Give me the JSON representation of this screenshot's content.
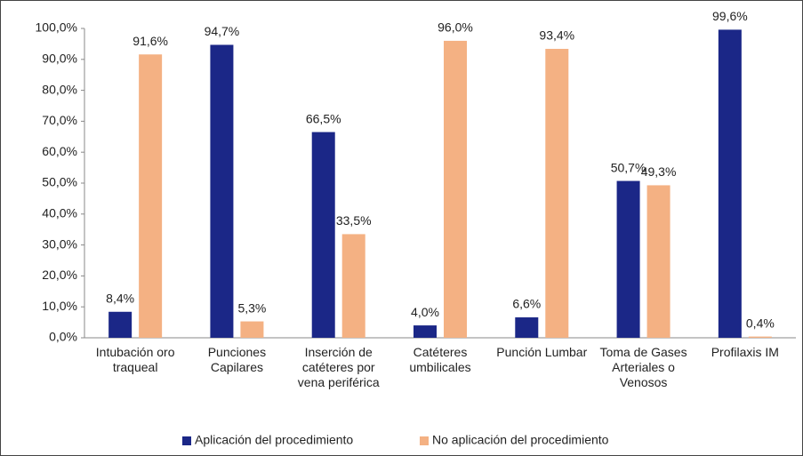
{
  "chart_data": {
    "type": "bar",
    "categories": [
      "Intubación oro traqueal",
      "Punciones Capilares",
      "Inserción de catéteres por vena periférica",
      "Catéteres umbilicales",
      "Punción Lumbar",
      "Toma de Gases Arteriales o Venosos",
      "Profilaxis IM"
    ],
    "series": [
      {
        "name": "Aplicación del procedimiento",
        "color": "#1b2787",
        "values": [
          8.4,
          94.7,
          66.5,
          4.0,
          6.6,
          50.7,
          99.6
        ],
        "value_labels": [
          "8,4%",
          "94,7%",
          "66,5%",
          "4,0%",
          "6,6%",
          "50,7%",
          "99,6%"
        ]
      },
      {
        "name": "No aplicación del procedimiento",
        "color": "#f4b183",
        "values": [
          91.6,
          5.3,
          33.5,
          96.0,
          93.4,
          49.3,
          0.4
        ],
        "value_labels": [
          "91,6%",
          "5,3%",
          "33,5%",
          "96,0%",
          "93,4%",
          "49,3%",
          "0,4%"
        ]
      }
    ],
    "ylim": [
      0,
      100
    ],
    "yticks": [
      {
        "value": 0,
        "label": "0,0%"
      },
      {
        "value": 10,
        "label": "10,0%"
      },
      {
        "value": 20,
        "label": "20,0%"
      },
      {
        "value": 30,
        "label": "30,0%"
      },
      {
        "value": 40,
        "label": "40,0%"
      },
      {
        "value": 50,
        "label": "50,0%"
      },
      {
        "value": 60,
        "label": "60,0%"
      },
      {
        "value": 70,
        "label": "70,0%"
      },
      {
        "value": 80,
        "label": "80,0%"
      },
      {
        "value": 90,
        "label": "90,0%"
      },
      {
        "value": 100,
        "label": "100,0%"
      }
    ],
    "legend": "bottom"
  }
}
